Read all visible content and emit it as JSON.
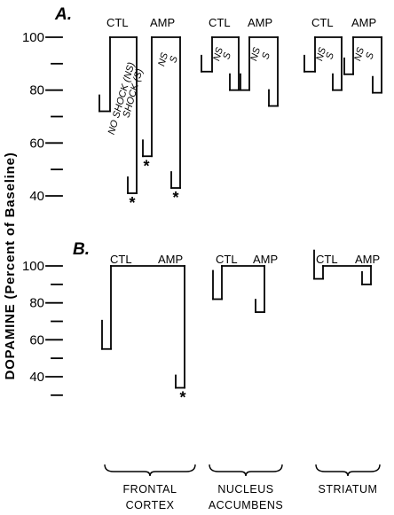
{
  "chart_data": {
    "type": "bar",
    "ylabel": "DOPAMINE (Percent of Baseline)",
    "y_ticks": [
      "100",
      "80",
      "60",
      "40"
    ],
    "regions": [
      "FRONTAL CORTEX",
      "NUCLEUS ACCUMBENS",
      "STRIATUM"
    ],
    "region_line1": [
      "FRONTAL",
      "NUCLEUS",
      "STRIATUM"
    ],
    "region_line2": [
      "CORTEX",
      "ACCUMBENS",
      ""
    ],
    "panels": [
      {
        "label": "A.",
        "groups_label": [
          "CTL",
          "AMP"
        ],
        "ylim": [
          30,
          100
        ],
        "bar_labels": {
          "no_shock": "NO SHOCK (NS)",
          "shock": "SHOCK (S)",
          "ns": "NS",
          "s": "S"
        },
        "series": [
          {
            "region": "FRONTAL CORTEX",
            "ctl": {
              "no_shock": 72,
              "shock": 41
            },
            "amp": {
              "no_shock": 55,
              "shock": 43
            },
            "significant": [
              "ctl.shock",
              "amp.no_shock",
              "amp.shock"
            ]
          },
          {
            "region": "NUCLEUS ACCUMBENS",
            "ctl": {
              "no_shock": 87,
              "shock": 80
            },
            "amp": {
              "no_shock": 80,
              "shock": 74
            },
            "significant": []
          },
          {
            "region": "STRIATUM",
            "ctl": {
              "no_shock": 87,
              "shock": 80
            },
            "amp": {
              "no_shock": 86,
              "shock": 79
            },
            "significant": []
          }
        ]
      },
      {
        "label": "B.",
        "groups_label": [
          "CTL",
          "AMP"
        ],
        "ylim": [
          25,
          100
        ],
        "series": [
          {
            "region": "FRONTAL CORTEX",
            "ctl": 55,
            "amp": 34,
            "significant": [
              "amp"
            ]
          },
          {
            "region": "NUCLEUS ACCUMBENS",
            "ctl": 82,
            "amp": 75,
            "significant": []
          },
          {
            "region": "STRIATUM",
            "ctl": 93,
            "amp": 90,
            "significant": []
          }
        ]
      }
    ],
    "significance_marker": "*"
  }
}
